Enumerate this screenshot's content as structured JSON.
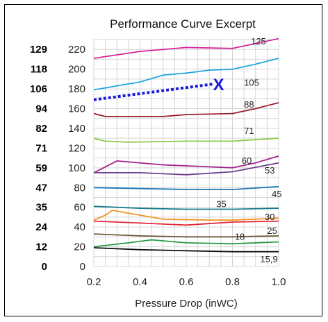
{
  "chart_data": {
    "type": "line",
    "title": "Performance Curve Excerpt",
    "xlabel": "Pressure Drop (inWC)",
    "ylabel": "",
    "xlim": [
      0.2,
      1.0
    ],
    "ylim": [
      0,
      230
    ],
    "x_ticks": [
      "0.2",
      "0.4",
      "0.6",
      "0.8",
      "1.0"
    ],
    "y_ticks": [
      "0",
      "20",
      "40",
      "60",
      "80",
      "100",
      "120",
      "140",
      "160",
      "180",
      "200",
      "220"
    ],
    "left_values": [
      "0",
      "12",
      "24",
      "35",
      "47",
      "59",
      "71",
      "82",
      "94",
      "106",
      "118",
      "129"
    ],
    "grid": true,
    "series": [
      {
        "name": "125",
        "color": "#d6249c",
        "points": [
          [
            0.2,
            211
          ],
          [
            0.4,
            218
          ],
          [
            0.6,
            222
          ],
          [
            0.8,
            221
          ],
          [
            0.9,
            226
          ],
          [
            1.0,
            231
          ]
        ]
      },
      {
        "name": "105",
        "color": "#1fa6e0",
        "points": [
          [
            0.2,
            179
          ],
          [
            0.3,
            183
          ],
          [
            0.4,
            187
          ],
          [
            0.5,
            194
          ],
          [
            0.6,
            196
          ],
          [
            0.7,
            199
          ],
          [
            0.8,
            200
          ],
          [
            0.9,
            205
          ],
          [
            1.0,
            211
          ]
        ]
      },
      {
        "name": "88",
        "color": "#9b1b2c",
        "points": [
          [
            0.2,
            155
          ],
          [
            0.25,
            152
          ],
          [
            0.5,
            152
          ],
          [
            0.6,
            154
          ],
          [
            0.8,
            155
          ],
          [
            0.9,
            160
          ],
          [
            1.0,
            166
          ]
        ]
      },
      {
        "name": "71",
        "color": "#8cc84b",
        "points": [
          [
            0.2,
            130
          ],
          [
            0.25,
            127
          ],
          [
            0.35,
            126
          ],
          [
            0.6,
            127
          ],
          [
            0.8,
            127
          ],
          [
            1.0,
            130
          ]
        ]
      },
      {
        "name": "60",
        "color": "#a2218a",
        "points": [
          [
            0.2,
            95
          ],
          [
            0.3,
            107
          ],
          [
            0.5,
            103
          ],
          [
            0.7,
            101
          ],
          [
            0.8,
            100
          ],
          [
            0.9,
            105
          ],
          [
            1.0,
            112
          ]
        ]
      },
      {
        "name": "53",
        "color": "#6b3d8f",
        "points": [
          [
            0.2,
            95
          ],
          [
            0.4,
            95
          ],
          [
            0.6,
            93
          ],
          [
            0.8,
            96
          ],
          [
            1.0,
            105
          ]
        ]
      },
      {
        "name": "45",
        "color": "#1a76b8",
        "points": [
          [
            0.2,
            80
          ],
          [
            0.4,
            79
          ],
          [
            0.6,
            78
          ],
          [
            0.8,
            78
          ],
          [
            1.0,
            81
          ]
        ]
      },
      {
        "name": "35",
        "color": "#137a8a",
        "points": [
          [
            0.2,
            61
          ],
          [
            0.4,
            59
          ],
          [
            0.6,
            58
          ],
          [
            0.8,
            58
          ],
          [
            1.0,
            59
          ]
        ]
      },
      {
        "name": "30",
        "color": "#f29422",
        "points": [
          [
            0.2,
            47
          ],
          [
            0.25,
            52
          ],
          [
            0.28,
            57
          ],
          [
            0.4,
            52
          ],
          [
            0.5,
            48
          ],
          [
            0.7,
            47
          ],
          [
            0.8,
            47
          ],
          [
            1.0,
            49
          ]
        ]
      },
      {
        "name": "25",
        "color": "#e32636",
        "points": [
          [
            0.2,
            46
          ],
          [
            0.4,
            44
          ],
          [
            0.6,
            42
          ],
          [
            0.8,
            45
          ],
          [
            1.0,
            46
          ]
        ]
      },
      {
        "name": "18",
        "color": "#6b5a3a",
        "points": [
          [
            0.2,
            33
          ],
          [
            0.4,
            31
          ],
          [
            0.6,
            30
          ],
          [
            0.8,
            30
          ],
          [
            1.0,
            31
          ]
        ]
      },
      {
        "name": "15,9",
        "color": "#2a9a46",
        "points": [
          [
            0.2,
            20
          ],
          [
            0.35,
            24
          ],
          [
            0.45,
            27
          ],
          [
            0.6,
            24
          ],
          [
            0.8,
            23
          ],
          [
            1.0,
            25
          ]
        ]
      },
      {
        "name": "",
        "color": "#111111",
        "points": [
          [
            0.2,
            19
          ],
          [
            0.4,
            17
          ],
          [
            0.6,
            16
          ],
          [
            0.8,
            15
          ],
          [
            1.0,
            15
          ]
        ]
      }
    ],
    "curve_labels": [
      {
        "text": "125",
        "x": 0.88,
        "y": 228
      },
      {
        "text": "105",
        "x": 0.85,
        "y": 186
      },
      {
        "text": "88",
        "x": 0.85,
        "y": 164
      },
      {
        "text": "71",
        "x": 0.85,
        "y": 137
      },
      {
        "text": "60",
        "x": 0.84,
        "y": 107
      },
      {
        "text": "53",
        "x": 0.94,
        "y": 97
      },
      {
        "text": "45",
        "x": 0.97,
        "y": 73
      },
      {
        "text": "35",
        "x": 0.73,
        "y": 63
      },
      {
        "text": "30",
        "x": 0.94,
        "y": 50
      },
      {
        "text": "25",
        "x": 0.95,
        "y": 36
      },
      {
        "text": "18",
        "x": 0.81,
        "y": 30
      },
      {
        "text": "15,9",
        "x": 0.92,
        "y": 7
      }
    ],
    "annotation": {
      "dashed_line": {
        "color": "#1a1adb",
        "from": [
          0.2,
          169
        ],
        "to": [
          0.72,
          185
        ]
      },
      "marker": {
        "text": "X",
        "x": 0.74,
        "y": 185,
        "color": "#1a1adb"
      }
    }
  }
}
